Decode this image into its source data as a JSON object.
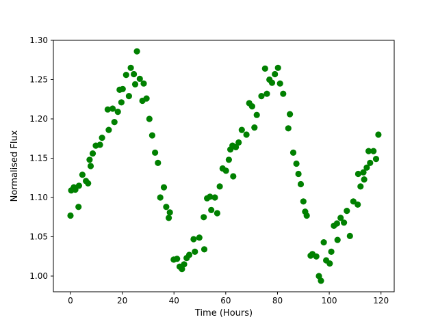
{
  "figure": {
    "background": "#ffffff",
    "spine_color": "#000000",
    "marker_color": "#008000"
  },
  "chart_data": {
    "type": "scatter",
    "title": "",
    "xlabel": "Time (Hours)",
    "ylabel": "Normalised Flux",
    "xlim": [
      -6.6,
      125.1
    ],
    "ylim": [
      0.98,
      1.3
    ],
    "xtick_values": [
      0,
      20,
      40,
      60,
      80,
      100,
      120
    ],
    "xtick_labels": [
      "0",
      "20",
      "40",
      "60",
      "80",
      "100",
      "120"
    ],
    "ytick_values": [
      1.0,
      1.05,
      1.1,
      1.15,
      1.2,
      1.25,
      1.3
    ],
    "ytick_labels": [
      "1.00",
      "1.05",
      "1.10",
      "1.15",
      "1.20",
      "1.25",
      "1.30"
    ],
    "grid": false,
    "legend": null,
    "marker": "circle",
    "marker_color": "#008000",
    "series": [
      {
        "name": "normalised-flux",
        "x": [
          0.0,
          0.3,
          1.3,
          1.9,
          3.1,
          3.3,
          4.6,
          6.0,
          6.8,
          7.4,
          7.8,
          8.6,
          9.8,
          11.4,
          12.2,
          14.4,
          14.8,
          16.3,
          17.0,
          18.3,
          19.0,
          19.7,
          20.2,
          21.5,
          22.6,
          23.3,
          24.5,
          25.0,
          25.7,
          26.8,
          27.8,
          28.3,
          29.4,
          30.5,
          31.6,
          32.7,
          33.8,
          34.7,
          36.1,
          37.0,
          38.0,
          38.4,
          39.9,
          41.2,
          42.2,
          43.1,
          43.9,
          44.9,
          45.9,
          47.6,
          48.1,
          49.8,
          51.5,
          51.7,
          52.8,
          53.9,
          54.4,
          55.8,
          56.7,
          57.7,
          58.8,
          60.1,
          61.2,
          61.8,
          62.6,
          62.9,
          63.9,
          65.0,
          66.2,
          68.0,
          69.1,
          70.2,
          71.1,
          72.0,
          73.8,
          75.2,
          75.9,
          76.9,
          77.9,
          79.0,
          80.2,
          81.0,
          82.2,
          84.2,
          84.8,
          86.1,
          87.3,
          88.1,
          89.0,
          90.0,
          90.7,
          91.3,
          92.8,
          93.5,
          95.0,
          96.0,
          96.8,
          97.9,
          98.8,
          100.2,
          100.8,
          101.8,
          103.0,
          103.2,
          104.4,
          105.7,
          106.8,
          108.0,
          109.3,
          111.0,
          111.2,
          112.1,
          113.2,
          113.5,
          114.5,
          115.2,
          115.8,
          117.1,
          118.1,
          119.0
        ],
        "y": [
          1.077,
          1.109,
          1.113,
          1.11,
          1.088,
          1.115,
          1.129,
          1.121,
          1.118,
          1.148,
          1.14,
          1.156,
          1.166,
          1.167,
          1.176,
          1.212,
          1.186,
          1.213,
          1.196,
          1.209,
          1.237,
          1.221,
          1.238,
          1.256,
          1.229,
          1.265,
          1.257,
          1.244,
          1.286,
          1.251,
          1.223,
          1.245,
          1.226,
          1.2,
          1.179,
          1.157,
          1.144,
          1.1,
          1.113,
          1.088,
          1.074,
          1.081,
          1.021,
          1.022,
          1.012,
          1.009,
          1.015,
          1.023,
          1.027,
          1.047,
          1.031,
          1.049,
          1.075,
          1.034,
          1.099,
          1.101,
          1.084,
          1.1,
          1.08,
          1.114,
          1.137,
          1.134,
          1.148,
          1.161,
          1.166,
          1.127,
          1.164,
          1.17,
          1.186,
          1.18,
          1.22,
          1.216,
          1.189,
          1.205,
          1.229,
          1.264,
          1.232,
          1.25,
          1.246,
          1.257,
          1.265,
          1.245,
          1.232,
          1.188,
          1.206,
          1.157,
          1.143,
          1.13,
          1.117,
          1.095,
          1.082,
          1.077,
          1.026,
          1.028,
          1.025,
          1.0,
          0.994,
          1.043,
          1.02,
          1.016,
          1.031,
          1.064,
          1.067,
          1.046,
          1.074,
          1.068,
          1.083,
          1.051,
          1.095,
          1.091,
          1.13,
          1.114,
          1.132,
          1.123,
          1.138,
          1.159,
          1.144,
          1.159,
          1.149,
          1.18
        ]
      }
    ]
  }
}
